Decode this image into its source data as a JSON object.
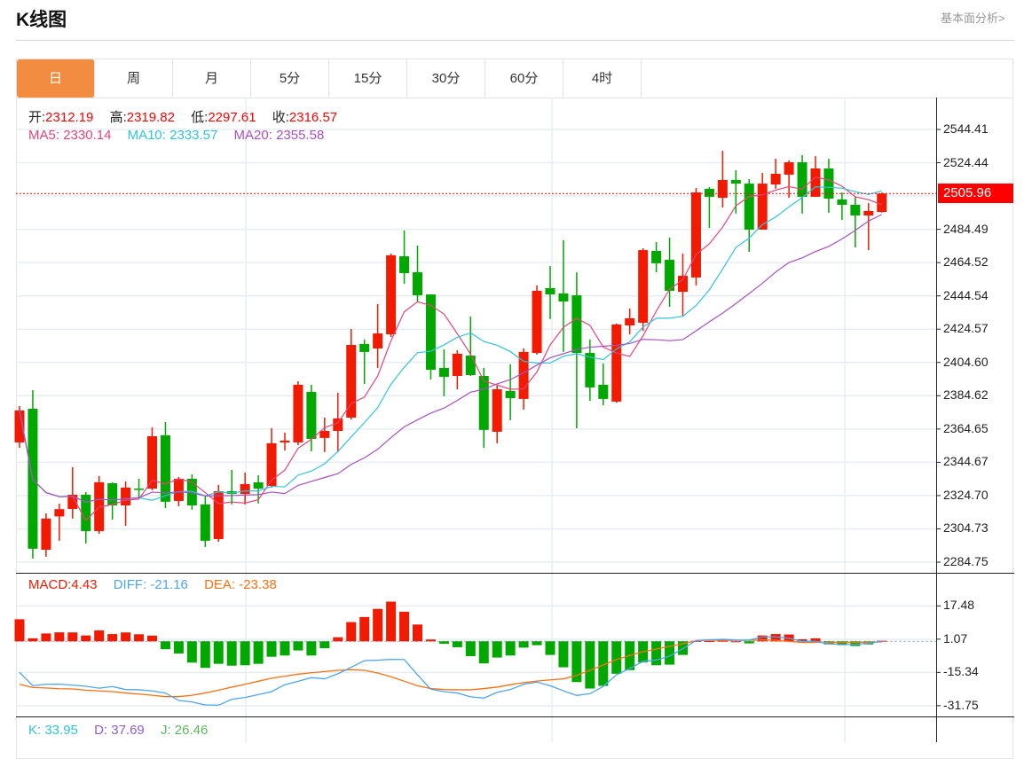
{
  "header": {
    "title": "K线图",
    "link": "基本面分析>"
  },
  "tabs": [
    "日",
    "周",
    "月",
    "5分",
    "15分",
    "30分",
    "60分",
    "4时"
  ],
  "active_tab": 0,
  "ohlc": {
    "open_label": "开:",
    "open": "2312.19",
    "high_label": "高:",
    "high": "2319.82",
    "low_label": "低:",
    "low": "2297.61",
    "close_label": "收:",
    "close": "2316.57"
  },
  "ma": {
    "ma5_label": "MA5:",
    "ma5": "2330.14",
    "ma10_label": "MA10:",
    "ma10": "2333.57",
    "ma20_label": "MA20:",
    "ma20": "2355.58"
  },
  "macd_info": {
    "macd": "MACD:4.43",
    "diff": "DIFF: -21.16",
    "dea": "DEA: -23.38"
  },
  "kdj_info": {
    "k": "K: 33.95",
    "d": "D: 37.69",
    "j": "J: 26.46"
  },
  "last_price": "2505.96",
  "colors": {
    "up": "#f21a00",
    "down": "#00a800",
    "ma5": "#e8437a",
    "ma10": "#2fc4dc",
    "ma20": "#a94fc4",
    "diff": "#4da6f0",
    "dea": "#ff6f0f",
    "accent": "#f28c40"
  },
  "chart_data": [
    {
      "type": "candlestick",
      "ylim": [
        2284.75,
        2544.41
      ],
      "y_ticks": [
        "2544.41",
        "2524.44",
        "2484.49",
        "2464.52",
        "2444.54",
        "2424.57",
        "2404.60",
        "2384.62",
        "2364.65",
        "2344.67",
        "2324.70",
        "2304.73",
        "2284.75"
      ],
      "y_tick_values": [
        2544.41,
        2524.44,
        2484.49,
        2464.52,
        2444.54,
        2424.57,
        2404.6,
        2384.62,
        2364.65,
        2344.67,
        2324.7,
        2304.73,
        2284.75
      ],
      "ohlc_fields": [
        "open",
        "close",
        "high",
        "low"
      ],
      "candles": [
        [
          2356.6,
          2375.8,
          2378.4,
          2353.4
        ],
        [
          2376.8,
          2292.8,
          2388.0,
          2286.9
        ],
        [
          2292.2,
          2310.9,
          2314.0,
          2288.0
        ],
        [
          2312.19,
          2316.57,
          2319.82,
          2297.61
        ],
        [
          2316.7,
          2325.2,
          2341.7,
          2310.9
        ],
        [
          2325.2,
          2303.4,
          2326.8,
          2296.0
        ],
        [
          2303.4,
          2332.7,
          2336.4,
          2301.8
        ],
        [
          2332.1,
          2318.8,
          2332.7,
          2310.3
        ],
        [
          2318.8,
          2329.5,
          2333.2,
          2306.6
        ],
        [
          2328.9,
          2328.4,
          2334.8,
          2323.6
        ],
        [
          2328.9,
          2360.3,
          2365.6,
          2327.9
        ],
        [
          2360.9,
          2321.0,
          2368.8,
          2317.2
        ],
        [
          2321.5,
          2334.8,
          2335.9,
          2318.3
        ],
        [
          2334.8,
          2318.8,
          2337.4,
          2316.2
        ],
        [
          2319.4,
          2297.6,
          2324.2,
          2293.8
        ],
        [
          2298.6,
          2327.3,
          2331.1,
          2297.0
        ],
        [
          2327.3,
          2325.7,
          2340.1,
          2319.4
        ],
        [
          2325.7,
          2331.6,
          2338.5,
          2319.4
        ],
        [
          2332.7,
          2328.9,
          2336.9,
          2319.9
        ],
        [
          2330.5,
          2356.1,
          2365.1,
          2329.5
        ],
        [
          2356.6,
          2357.7,
          2362.5,
          2351.8
        ],
        [
          2356.6,
          2391.2,
          2393.3,
          2355.0
        ],
        [
          2386.9,
          2358.7,
          2391.2,
          2351.3
        ],
        [
          2359.3,
          2363.5,
          2371.5,
          2350.8
        ],
        [
          2363.5,
          2371.0,
          2386.4,
          2350.8
        ],
        [
          2371.5,
          2415.1,
          2424.7,
          2370.4
        ],
        [
          2415.7,
          2410.9,
          2418.3,
          2391.7
        ],
        [
          2413.0,
          2422.0,
          2439.6,
          2401.3
        ],
        [
          2421.5,
          2468.9,
          2469.9,
          2419.9
        ],
        [
          2468.3,
          2458.2,
          2483.8,
          2451.8
        ],
        [
          2458.7,
          2444.9,
          2474.7,
          2441.2
        ],
        [
          2445.4,
          2400.2,
          2445.4,
          2394.4
        ],
        [
          2401.3,
          2396.0,
          2412.5,
          2384.3
        ],
        [
          2396.5,
          2409.8,
          2411.9,
          2388.5
        ],
        [
          2408.7,
          2397.0,
          2432.1,
          2396.5
        ],
        [
          2396.5,
          2364.1,
          2401.3,
          2353.4
        ],
        [
          2363.0,
          2388.5,
          2390.7,
          2356.1
        ],
        [
          2387.5,
          2383.2,
          2403.4,
          2369.9
        ],
        [
          2382.7,
          2410.9,
          2413.0,
          2376.3
        ],
        [
          2410.3,
          2447.6,
          2450.8,
          2409.3
        ],
        [
          2449.2,
          2445.4,
          2462.5,
          2430.6
        ],
        [
          2446.0,
          2441.2,
          2477.9,
          2410.9
        ],
        [
          2444.9,
          2410.3,
          2458.7,
          2365.1
        ],
        [
          2410.3,
          2389.6,
          2418.3,
          2381.6
        ],
        [
          2391.2,
          2382.7,
          2404.0,
          2378.9
        ],
        [
          2381.1,
          2427.4,
          2427.9,
          2380.5
        ],
        [
          2426.8,
          2431.1,
          2436.9,
          2421.5
        ],
        [
          2428.4,
          2472.0,
          2473.1,
          2423.6
        ],
        [
          2471.5,
          2464.1,
          2476.8,
          2458.7
        ],
        [
          2466.2,
          2447.6,
          2479.5,
          2438.0
        ],
        [
          2447.0,
          2456.6,
          2469.9,
          2432.7
        ],
        [
          2455.6,
          2506.6,
          2509.3,
          2450.8
        ],
        [
          2508.8,
          2504.0,
          2509.8,
          2485.3
        ],
        [
          2503.4,
          2514.1,
          2531.6,
          2497.6
        ],
        [
          2514.1,
          2511.9,
          2519.9,
          2493.9
        ],
        [
          2511.9,
          2484.3,
          2514.6,
          2471.0
        ],
        [
          2484.3,
          2511.9,
          2518.3,
          2484.3
        ],
        [
          2511.4,
          2517.8,
          2526.8,
          2508.8
        ],
        [
          2517.3,
          2524.7,
          2525.8,
          2503.4
        ],
        [
          2524.7,
          2504.0,
          2529.0,
          2493.9
        ],
        [
          2504.0,
          2521.0,
          2528.4,
          2504.0
        ],
        [
          2521.0,
          2502.9,
          2526.8,
          2494.4
        ],
        [
          2502.4,
          2499.2,
          2506.6,
          2490.1
        ],
        [
          2499.2,
          2492.8,
          2504.0,
          2473.6
        ],
        [
          2492.8,
          2495.5,
          2500.2,
          2472.0
        ],
        [
          2494.9,
          2505.96,
          2506.5,
          2494.5
        ]
      ]
    },
    {
      "type": "macd",
      "y_ticks": [
        "17.48",
        "1.07",
        "-15.34",
        "-31.75"
      ],
      "y_tick_values": [
        17.48,
        1.07,
        -15.34,
        -31.75
      ],
      "hist": [
        10.9,
        1.5,
        3.9,
        4.43,
        4.4,
        2.9,
        5.4,
        3.6,
        4.4,
        3.5,
        2.8,
        -3.9,
        -6.0,
        -10.5,
        -13.1,
        -11.1,
        -12.0,
        -11.8,
        -11.1,
        -7.6,
        -7.0,
        -4.5,
        -7.0,
        -3.4,
        2.0,
        9.5,
        12.0,
        16.0,
        19.6,
        14.6,
        8.3,
        0.9,
        -1.2,
        -2.9,
        -7.3,
        -10.9,
        -8.0,
        -7.0,
        -3.1,
        -1.9,
        -6.7,
        -12.8,
        -20.1,
        -23.3,
        -22.0,
        -16.0,
        -14.2,
        -10.4,
        -11.8,
        -11.5,
        -6.7,
        0.2,
        0.1,
        0.3,
        0,
        -1.0,
        2.9,
        3.6,
        3.4,
        1.0,
        1.5,
        -1.5,
        -1.9,
        -2.3,
        -1.5,
        0.3
      ],
      "diff": [
        -15.3,
        -21.9,
        -21.2,
        -21.16,
        -21.6,
        -22.2,
        -23.1,
        -22.3,
        -23.8,
        -23.9,
        -24.5,
        -25.5,
        -29.2,
        -29.9,
        -31.4,
        -31.5,
        -28.6,
        -27.7,
        -26.3,
        -24.8,
        -21.4,
        -19.7,
        -17.9,
        -18.5,
        -16.0,
        -12.8,
        -9.5,
        -9.3,
        -8.9,
        -9.0,
        -16.5,
        -23.6,
        -24.8,
        -25.5,
        -27.4,
        -28.0,
        -25.2,
        -23.8,
        -21.2,
        -20.1,
        -21.9,
        -24.4,
        -26.7,
        -25.8,
        -22.2,
        -16.5,
        -13.4,
        -9.9,
        -9.2,
        -7.3,
        -3.6,
        0.4,
        0.7,
        1.0,
        0.6,
        0.6,
        2.2,
        2.2,
        1.5,
        0,
        0,
        -1.2,
        -1.5,
        -1.5,
        -0.9,
        0
      ],
      "dea": [
        -21.2,
        -22.8,
        -23.0,
        -23.38,
        -23.5,
        -24.1,
        -24.5,
        -24.8,
        -25.5,
        -26.0,
        -26.6,
        -27.3,
        -27.3,
        -26.6,
        -25.5,
        -24.1,
        -22.6,
        -21.2,
        -19.7,
        -18.2,
        -17.2,
        -16.2,
        -15.5,
        -14.9,
        -14.3,
        -14.0,
        -14.3,
        -15.6,
        -17.5,
        -19.7,
        -21.9,
        -23.3,
        -23.8,
        -23.9,
        -23.9,
        -23.3,
        -22.6,
        -21.4,
        -20.4,
        -19.6,
        -19.0,
        -18.5,
        -16.8,
        -14.3,
        -11.7,
        -9.0,
        -7.0,
        -5.1,
        -3.8,
        -2.5,
        -1.2,
        0.3,
        0.5,
        0.5,
        0.5,
        0.5,
        0.7,
        0.5,
        0,
        -0.5,
        -0.5,
        -0.5,
        -0.5,
        -0.5,
        -0.4,
        -0.3
      ]
    }
  ]
}
